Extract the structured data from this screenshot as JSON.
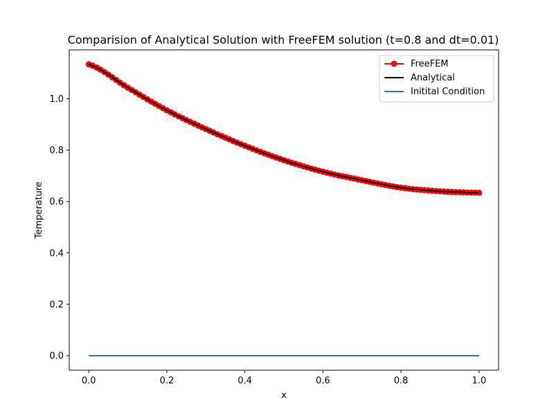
{
  "chart_data": {
    "type": "line",
    "title": "Comparision of Analytical Solution with FreeFEM solution (t=0.8 and dt=0.01)",
    "xlabel": "x",
    "ylabel": "Temperature",
    "xlim": [
      -0.05,
      1.05
    ],
    "ylim": [
      -0.0567,
      1.19
    ],
    "xticks": [
      "0.0",
      "0.2",
      "0.4",
      "0.6",
      "0.8",
      "1.0"
    ],
    "yticks": [
      "0.0",
      "0.2",
      "0.4",
      "0.6",
      "0.8",
      "1.0"
    ],
    "grid": false,
    "legend_position": "top-right",
    "x": [
      0.0,
      0.1,
      0.2,
      0.3,
      0.4,
      0.5,
      0.6,
      0.7,
      0.8,
      0.9,
      1.0
    ],
    "series": [
      {
        "name": "FreeFEM",
        "color": "#ff0000",
        "style": "line-with-circle-markers",
        "marker_count": 101,
        "values": [
          1.134,
          1.043,
          0.955,
          0.882,
          0.817,
          0.761,
          0.716,
          0.683,
          0.654,
          0.64,
          0.634
        ]
      },
      {
        "name": "Analytical",
        "color": "#000000",
        "style": "line",
        "values": [
          1.134,
          1.043,
          0.955,
          0.882,
          0.817,
          0.761,
          0.716,
          0.683,
          0.654,
          0.64,
          0.634
        ]
      },
      {
        "name": "Initital Condition",
        "color": "#1f77b4",
        "style": "line",
        "values": [
          0.0,
          0.0,
          0.0,
          0.0,
          0.0,
          0.0,
          0.0,
          0.0,
          0.0,
          0.0,
          0.0
        ]
      }
    ]
  }
}
